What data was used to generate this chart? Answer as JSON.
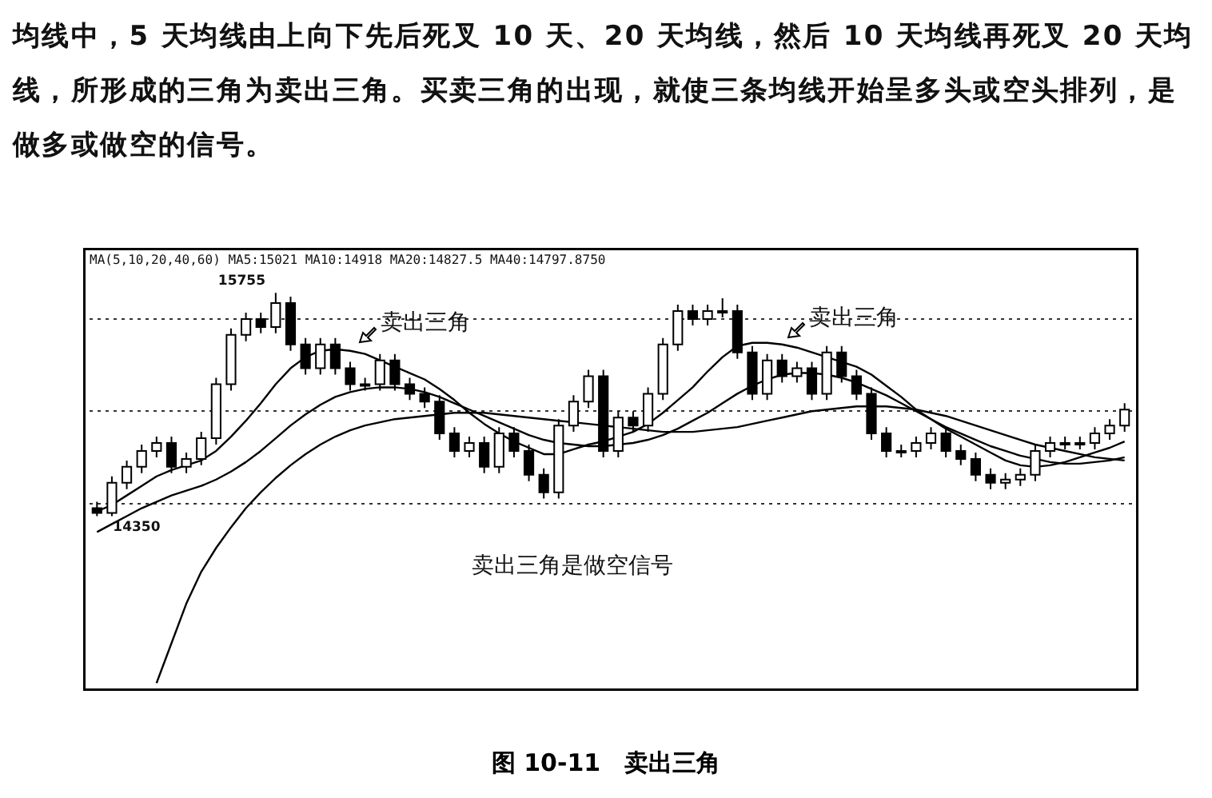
{
  "chart_data": {
    "type": "candlestick",
    "title": "图 10-11　卖出三角",
    "annotations": [
      "均线中，5 天均线由上向下先后死叉 10 天、20 天均线，然后 10 天均线再死叉 20 天均线，所形成的三角为卖出三角。买卖三角的出现，就使三条均线开始呈多头或空头排列，是做多或做空的信号。",
      "MA(5,10,20,40,60) MA5:15021 MA10:14918 MA20:14827.5 MA40:14797.8750",
      "15755",
      "14350",
      "卖出三角",
      "卖出三角",
      "卖出三角是做空信号"
    ],
    "categories": [
      null,
      null,
      null,
      null,
      null,
      null,
      null,
      null,
      null,
      null,
      null,
      null,
      null,
      null,
      null,
      null,
      null,
      null,
      null,
      null,
      null,
      null,
      null,
      null,
      null,
      null,
      null,
      null,
      null,
      null,
      null,
      null,
      null,
      null,
      null,
      null,
      null,
      null,
      null,
      null,
      null,
      null,
      null,
      null,
      null,
      null,
      null,
      null,
      null,
      null,
      null,
      null,
      null,
      null,
      null,
      null,
      null,
      null,
      null,
      null,
      null,
      null,
      null,
      null,
      null,
      null,
      null,
      null,
      null,
      null
    ],
    "ohlc": [
      [
        14400,
        14440,
        14350,
        14370
      ],
      [
        14370,
        14600,
        14350,
        14560
      ],
      [
        14560,
        14700,
        14520,
        14660
      ],
      [
        14660,
        14800,
        14620,
        14760
      ],
      [
        14760,
        14850,
        14720,
        14810
      ],
      [
        14810,
        14850,
        14620,
        14660
      ],
      [
        14660,
        14750,
        14620,
        14710
      ],
      [
        14710,
        14880,
        14670,
        14840
      ],
      [
        14840,
        15220,
        14800,
        15180
      ],
      [
        15180,
        15530,
        15140,
        15490
      ],
      [
        15490,
        15630,
        15450,
        15590
      ],
      [
        15590,
        15630,
        15500,
        15540
      ],
      [
        15540,
        15755,
        15500,
        15690
      ],
      [
        15690,
        15730,
        15390,
        15430
      ],
      [
        15430,
        15470,
        15240,
        15280
      ],
      [
        15280,
        15470,
        15240,
        15430
      ],
      [
        15430,
        15470,
        15240,
        15280
      ],
      [
        15280,
        15320,
        15140,
        15180
      ],
      [
        15180,
        15220,
        15140,
        15180
      ],
      [
        15180,
        15370,
        15140,
        15330
      ],
      [
        15330,
        15370,
        15140,
        15180
      ],
      [
        15180,
        15220,
        15080,
        15120
      ],
      [
        15120,
        15160,
        15030,
        15070
      ],
      [
        15070,
        15110,
        14830,
        14870
      ],
      [
        14870,
        14910,
        14720,
        14760
      ],
      [
        14760,
        14850,
        14720,
        14810
      ],
      [
        14810,
        14850,
        14620,
        14660
      ],
      [
        14660,
        14910,
        14620,
        14870
      ],
      [
        14870,
        14910,
        14720,
        14760
      ],
      [
        14760,
        14800,
        14570,
        14610
      ],
      [
        14610,
        14650,
        14460,
        14500
      ],
      [
        14500,
        14960,
        14460,
        14920
      ],
      [
        14920,
        15110,
        14880,
        15070
      ],
      [
        15070,
        15270,
        15030,
        15230
      ],
      [
        15230,
        15270,
        14720,
        14760
      ],
      [
        14760,
        15010,
        14720,
        14970
      ],
      [
        14970,
        15010,
        14880,
        14920
      ],
      [
        14920,
        15160,
        14880,
        15120
      ],
      [
        15120,
        15470,
        15080,
        15430
      ],
      [
        15430,
        15680,
        15390,
        15640
      ],
      [
        15640,
        15680,
        15550,
        15590
      ],
      [
        15590,
        15680,
        15550,
        15640
      ],
      [
        15640,
        15720,
        15600,
        15640
      ],
      [
        15640,
        15680,
        15340,
        15380
      ],
      [
        15380,
        15420,
        15080,
        15120
      ],
      [
        15120,
        15370,
        15080,
        15330
      ],
      [
        15330,
        15370,
        15190,
        15230
      ],
      [
        15230,
        15320,
        15190,
        15280
      ],
      [
        15280,
        15320,
        15080,
        15120
      ],
      [
        15120,
        15420,
        15080,
        15380
      ],
      [
        15380,
        15420,
        15190,
        15230
      ],
      [
        15230,
        15270,
        15080,
        15120
      ],
      [
        15120,
        15160,
        14830,
        14870
      ],
      [
        14870,
        14910,
        14720,
        14760
      ],
      [
        14760,
        14800,
        14720,
        14760
      ],
      [
        14760,
        14850,
        14720,
        14810
      ],
      [
        14810,
        14910,
        14770,
        14870
      ],
      [
        14870,
        14910,
        14720,
        14760
      ],
      [
        14760,
        14800,
        14670,
        14710
      ],
      [
        14710,
        14750,
        14570,
        14610
      ],
      [
        14610,
        14650,
        14520,
        14560
      ],
      [
        14560,
        14620,
        14520,
        14580
      ],
      [
        14580,
        14650,
        14540,
        14610
      ],
      [
        14610,
        14800,
        14570,
        14760
      ],
      [
        14760,
        14850,
        14720,
        14810
      ],
      [
        14810,
        14850,
        14770,
        14810
      ],
      [
        14810,
        14850,
        14770,
        14810
      ],
      [
        14810,
        14910,
        14770,
        14870
      ],
      [
        14870,
        14960,
        14830,
        14920
      ],
      [
        14920,
        15060,
        14880,
        15020
      ]
    ],
    "series": [
      {
        "type": "line",
        "color": "#000000",
        "values": [
          14380,
          14420,
          14480,
          14540,
          14600,
          14640,
          14670,
          14700,
          14760,
          14850,
          14950,
          15060,
          15180,
          15280,
          15350,
          15390,
          15400,
          15390,
          15370,
          15330,
          15290,
          15250,
          15210,
          15150,
          15080,
          15000,
          14930,
          14870,
          14820,
          14780,
          14740,
          14740,
          14770,
          14800,
          14820,
          14850,
          14880,
          14930,
          15000,
          15080,
          15160,
          15260,
          15350,
          15420,
          15440,
          15440,
          15430,
          15410,
          15380,
          15350,
          15320,
          15290,
          15240,
          15170,
          15100,
          15020,
          14960,
          14900,
          14850,
          14800,
          14750,
          14700,
          14670,
          14660,
          14670,
          14690,
          14720,
          14750,
          14780,
          14820
        ]
      },
      {
        "type": "line",
        "color": "#000000",
        "values": [
          14250,
          14300,
          14350,
          14400,
          14440,
          14480,
          14510,
          14540,
          14580,
          14630,
          14690,
          14760,
          14840,
          14920,
          14990,
          15050,
          15100,
          15130,
          15150,
          15160,
          15160,
          15150,
          15130,
          15100,
          15060,
          15020,
          14980,
          14940,
          14900,
          14860,
          14830,
          14810,
          14800,
          14790,
          14790,
          14800,
          14810,
          14830,
          14860,
          14900,
          14950,
          15000,
          15060,
          15120,
          15170,
          15210,
          15240,
          15250,
          15250,
          15240,
          15220,
          15190,
          15150,
          15110,
          15060,
          15010,
          14960,
          14910,
          14870,
          14830,
          14790,
          14760,
          14730,
          14710,
          14690,
          14680,
          14680,
          14690,
          14700,
          14720
        ]
      },
      {
        "type": "line",
        "color": "#000000",
        "values": [
          null,
          null,
          null,
          null,
          13300,
          13550,
          13800,
          14000,
          14150,
          14280,
          14400,
          14500,
          14590,
          14670,
          14740,
          14800,
          14850,
          14890,
          14920,
          14940,
          14960,
          14970,
          14980,
          14990,
          15000,
          15000,
          15000,
          14990,
          14980,
          14970,
          14960,
          14950,
          14940,
          14930,
          14920,
          14910,
          14900,
          14890,
          14880,
          14880,
          14880,
          14890,
          14900,
          14910,
          14930,
          14950,
          14970,
          14990,
          15010,
          15020,
          15030,
          15040,
          15040,
          15040,
          15030,
          15020,
          15000,
          14980,
          14950,
          14920,
          14890,
          14860,
          14830,
          14800,
          14780,
          14760,
          14740,
          14720,
          14710,
          14700
        ]
      }
    ],
    "yticks": [
      {
        "value": 14430,
        "label": null
      },
      {
        "value": 15010,
        "label": null
      },
      {
        "value": 15590,
        "label": null
      }
    ],
    "grid": "y",
    "tick_labels": false,
    "legend": false
  }
}
